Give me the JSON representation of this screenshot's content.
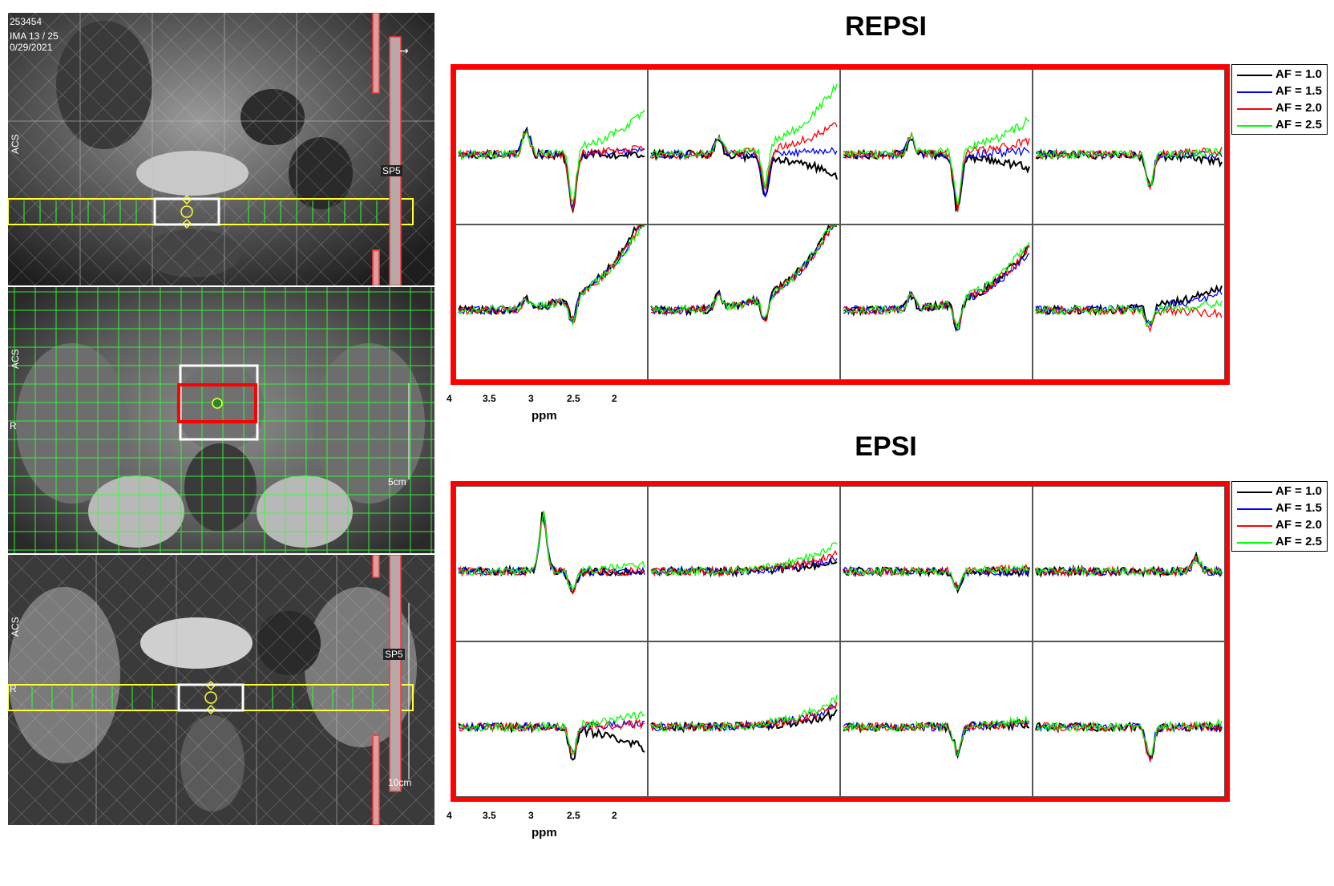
{
  "mri": {
    "top": {
      "lines": [
        "253454",
        "IMA 13 / 25",
        "0/29/2021"
      ],
      "side_label": "ACS",
      "slab_label": "SP5"
    },
    "middle": {
      "side_label": "ACS",
      "r_label": "R",
      "scale_label": "5cm"
    },
    "bottom": {
      "side_label": "ACS",
      "r_label": "R",
      "slab_label": "SP5",
      "scale_label": "10cm"
    }
  },
  "colors": {
    "frame": "#ff0000",
    "af10": "#000000",
    "af15": "#0000ff",
    "af20": "#ff0000",
    "af25": "#00ff00",
    "grid_green": "#33ff33",
    "slab_yellow": "#ffff33"
  },
  "chart_data": [
    {
      "type": "line",
      "title": "REPSI",
      "xlabel": "ppm",
      "xlim": [
        4,
        1.8
      ],
      "xticks": [
        "4",
        "3.5",
        "3",
        "2.5",
        "2"
      ],
      "grid_layout": {
        "rows": 2,
        "cols": 4
      },
      "series": [
        {
          "name": "AF = 1.0",
          "color": "#000000"
        },
        {
          "name": "AF = 1.5",
          "color": "#0000ff"
        },
        {
          "name": "AF = 2.0",
          "color": "#ff0000"
        },
        {
          "name": "AF = 2.5",
          "color": "#00ff00"
        }
      ],
      "cells": [
        {
          "peaks": [
            [
              3.2,
              0.35
            ],
            [
              2.65,
              -0.75
            ]
          ],
          "tail": [
            0.0,
            0.05,
            0.1,
            0.6
          ]
        },
        {
          "peaks": [
            [
              3.2,
              0.25
            ],
            [
              2.65,
              -0.55
            ]
          ],
          "tail": [
            -0.3,
            0.05,
            0.45,
            1.0
          ]
        },
        {
          "peaks": [
            [
              3.2,
              0.25
            ],
            [
              2.65,
              -0.75
            ]
          ],
          "tail": [
            -0.2,
            0.05,
            0.2,
            0.5
          ]
        },
        {
          "peaks": [
            [
              2.65,
              -0.45
            ]
          ],
          "tail": [
            -0.1,
            0.0,
            0.05,
            0.05
          ]
        },
        {
          "peaks": [
            [
              3.2,
              0.15
            ],
            [
              2.65,
              -0.35
            ]
          ],
          "tail": [
            1.4,
            1.35,
            1.35,
            1.3
          ]
        },
        {
          "peaks": [
            [
              3.2,
              0.2
            ],
            [
              2.65,
              -0.35
            ]
          ],
          "tail": [
            1.4,
            1.35,
            1.35,
            1.4
          ]
        },
        {
          "peaks": [
            [
              3.2,
              0.2
            ],
            [
              2.65,
              -0.4
            ]
          ],
          "tail": [
            0.9,
            0.85,
            0.9,
            1.0
          ]
        },
        {
          "peaks": [
            [
              2.65,
              -0.25
            ]
          ],
          "tail": [
            0.35,
            0.25,
            -0.05,
            0.1
          ]
        }
      ]
    },
    {
      "type": "line",
      "title": "EPSI",
      "xlabel": "ppm",
      "xlim": [
        4,
        1.8
      ],
      "xticks": [
        "4",
        "3.5",
        "3",
        "2.5",
        "2"
      ],
      "grid_layout": {
        "rows": 2,
        "cols": 4
      },
      "series": [
        {
          "name": "AF = 1.0",
          "color": "#000000"
        },
        {
          "name": "AF = 1.5",
          "color": "#0000ff"
        },
        {
          "name": "AF = 2.0",
          "color": "#ff0000"
        },
        {
          "name": "AF = 2.5",
          "color": "#00ff00"
        }
      ],
      "cells": [
        {
          "peaks": [
            [
              3.0,
              0.8
            ],
            [
              2.65,
              -0.3
            ]
          ],
          "tail": [
            0.0,
            0.0,
            0.0,
            0.1
          ]
        },
        {
          "peaks": [],
          "tail": [
            0.15,
            0.2,
            0.25,
            0.4
          ]
        },
        {
          "peaks": [
            [
              2.65,
              -0.25
            ]
          ],
          "tail": [
            0.0,
            0.0,
            0.05,
            0.05
          ]
        },
        {
          "peaks": [
            [
              2.1,
              0.2
            ]
          ],
          "tail": [
            0.0,
            0.0,
            0.0,
            0.0
          ]
        },
        {
          "peaks": [
            [
              2.65,
              -0.4
            ]
          ],
          "tail": [
            -0.3,
            0.05,
            0.05,
            0.2
          ]
        },
        {
          "peaks": [],
          "tail": [
            0.2,
            0.3,
            0.3,
            0.4
          ]
        },
        {
          "peaks": [
            [
              2.65,
              -0.4
            ]
          ],
          "tail": [
            0.05,
            0.05,
            0.05,
            0.1
          ]
        },
        {
          "peaks": [
            [
              2.65,
              -0.45
            ]
          ],
          "tail": [
            0.0,
            0.0,
            0.0,
            0.05
          ]
        }
      ]
    }
  ]
}
